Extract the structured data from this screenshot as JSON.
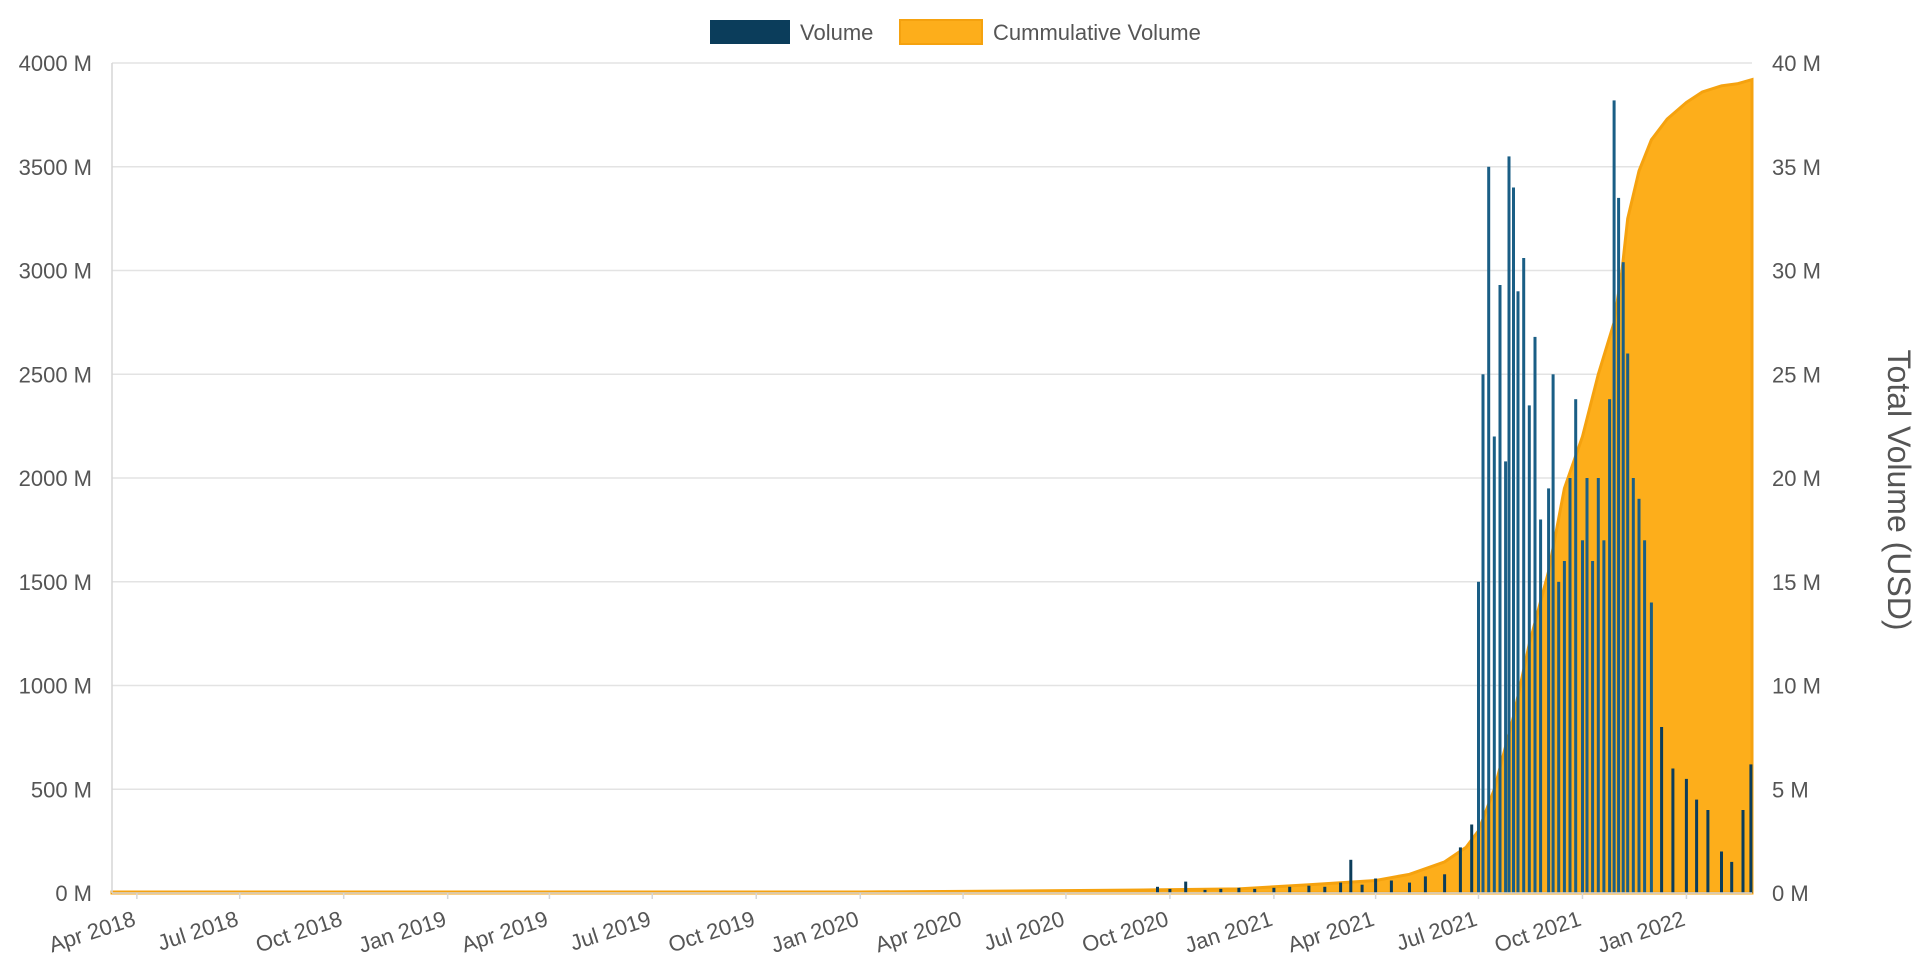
{
  "chart_data": {
    "type": "bar",
    "title": "",
    "xlabel": "",
    "ylabel_left": "",
    "ylabel_right": "Total Volume (USD)",
    "legend_position": "top-center",
    "grid": true,
    "x_range": [
      "2018-03-10",
      "2022-02-28"
    ],
    "ylim_left": [
      0,
      4000
    ],
    "ylim_right": [
      0,
      40
    ],
    "unit": "M",
    "colors": {
      "volume": "#0b3d5b",
      "volume_light": "#1a5e85",
      "cumulative": "#fdae1b"
    },
    "legend": [
      {
        "name": "Volume",
        "color": "#0b3d5b",
        "axis": "left",
        "type": "bar"
      },
      {
        "name": "Cummulative Volume",
        "color": "#fdae1b",
        "axis": "right",
        "type": "area"
      }
    ],
    "y_ticks_left": [
      "0 M",
      "500 M",
      "1000 M",
      "1500 M",
      "2000 M",
      "2500 M",
      "3000 M",
      "3500 M",
      "4000 M"
    ],
    "y_ticks_right": [
      "0 M",
      "5 M",
      "10 M",
      "15 M",
      "20 M",
      "25 M",
      "30 M",
      "35 M",
      "40 M"
    ],
    "x_ticks": [
      {
        "label": "Apr 2018",
        "date": "2018-04-01"
      },
      {
        "label": "Jul 2018",
        "date": "2018-07-01"
      },
      {
        "label": "Oct 2018",
        "date": "2018-10-01"
      },
      {
        "label": "Jan 2019",
        "date": "2019-01-01"
      },
      {
        "label": "Apr 2019",
        "date": "2019-04-01"
      },
      {
        "label": "Jul 2019",
        "date": "2019-07-01"
      },
      {
        "label": "Oct 2019",
        "date": "2019-10-01"
      },
      {
        "label": "Jan 2020",
        "date": "2020-01-01"
      },
      {
        "label": "Apr 2020",
        "date": "2020-04-01"
      },
      {
        "label": "Jul 2020",
        "date": "2020-07-01"
      },
      {
        "label": "Oct 2020",
        "date": "2020-10-01"
      },
      {
        "label": "Jan 2021",
        "date": "2021-01-01"
      },
      {
        "label": "Apr 2021",
        "date": "2021-04-01"
      },
      {
        "label": "Jul 2021",
        "date": "2021-07-01"
      },
      {
        "label": "Oct 2021",
        "date": "2021-10-01"
      },
      {
        "label": "Jan 2022",
        "date": "2022-01-01"
      }
    ],
    "series": [
      {
        "name": "Volume",
        "axis": "left",
        "type": "bar",
        "points": [
          [
            "2020-09-20",
            30
          ],
          [
            "2020-10-01",
            20
          ],
          [
            "2020-10-15",
            55
          ],
          [
            "2020-11-01",
            15
          ],
          [
            "2020-11-15",
            20
          ],
          [
            "2020-12-01",
            25
          ],
          [
            "2020-12-15",
            20
          ],
          [
            "2021-01-01",
            25
          ],
          [
            "2021-01-15",
            30
          ],
          [
            "2021-02-01",
            35
          ],
          [
            "2021-02-15",
            30
          ],
          [
            "2021-03-01",
            50
          ],
          [
            "2021-03-10",
            160
          ],
          [
            "2021-03-20",
            40
          ],
          [
            "2021-04-01",
            70
          ],
          [
            "2021-04-15",
            60
          ],
          [
            "2021-05-01",
            50
          ],
          [
            "2021-05-15",
            80
          ],
          [
            "2021-06-01",
            90
          ],
          [
            "2021-06-15",
            220
          ],
          [
            "2021-06-25",
            330
          ],
          [
            "2021-07-01",
            1500
          ],
          [
            "2021-07-05",
            2500
          ],
          [
            "2021-07-10",
            3500
          ],
          [
            "2021-07-15",
            2200
          ],
          [
            "2021-07-20",
            2930
          ],
          [
            "2021-07-25",
            2080
          ],
          [
            "2021-07-28",
            3550
          ],
          [
            "2021-08-01",
            3400
          ],
          [
            "2021-08-05",
            2900
          ],
          [
            "2021-08-10",
            3060
          ],
          [
            "2021-08-15",
            2350
          ],
          [
            "2021-08-20",
            2680
          ],
          [
            "2021-08-25",
            1800
          ],
          [
            "2021-09-01",
            1950
          ],
          [
            "2021-09-05",
            2500
          ],
          [
            "2021-09-10",
            1500
          ],
          [
            "2021-09-15",
            1600
          ],
          [
            "2021-09-20",
            2000
          ],
          [
            "2021-09-25",
            2380
          ],
          [
            "2021-10-01",
            1700
          ],
          [
            "2021-10-05",
            2000
          ],
          [
            "2021-10-10",
            1600
          ],
          [
            "2021-10-15",
            2000
          ],
          [
            "2021-10-20",
            1700
          ],
          [
            "2021-10-25",
            2380
          ],
          [
            "2021-10-29",
            3820
          ],
          [
            "2021-11-02",
            3350
          ],
          [
            "2021-11-06",
            3040
          ],
          [
            "2021-11-10",
            2600
          ],
          [
            "2021-11-15",
            2000
          ],
          [
            "2021-11-20",
            1900
          ],
          [
            "2021-11-25",
            1700
          ],
          [
            "2021-12-01",
            1400
          ],
          [
            "2021-12-10",
            800
          ],
          [
            "2021-12-20",
            600
          ],
          [
            "2022-01-01",
            550
          ],
          [
            "2022-01-10",
            450
          ],
          [
            "2022-01-20",
            400
          ],
          [
            "2022-02-01",
            200
          ],
          [
            "2022-02-10",
            150
          ],
          [
            "2022-02-20",
            400
          ],
          [
            "2022-02-27",
            620
          ]
        ]
      },
      {
        "name": "Cummulative Volume",
        "axis": "right",
        "type": "area",
        "points": [
          [
            "2018-03-10",
            0.05
          ],
          [
            "2019-01-01",
            0.05
          ],
          [
            "2020-01-01",
            0.05
          ],
          [
            "2020-06-01",
            0.1
          ],
          [
            "2020-09-15",
            0.15
          ],
          [
            "2020-12-01",
            0.2
          ],
          [
            "2021-02-01",
            0.4
          ],
          [
            "2021-04-01",
            0.6
          ],
          [
            "2021-05-01",
            0.9
          ],
          [
            "2021-06-01",
            1.5
          ],
          [
            "2021-06-20",
            2.2
          ],
          [
            "2021-07-01",
            3.0
          ],
          [
            "2021-07-15",
            5.0
          ],
          [
            "2021-08-01",
            8.5
          ],
          [
            "2021-08-15",
            12.0
          ],
          [
            "2021-09-01",
            15.5
          ],
          [
            "2021-09-15",
            19.5
          ],
          [
            "2021-10-01",
            22.0
          ],
          [
            "2021-10-15",
            25.0
          ],
          [
            "2021-10-29",
            27.5
          ],
          [
            "2021-11-05",
            30.0
          ],
          [
            "2021-11-10",
            32.5
          ],
          [
            "2021-11-20",
            34.8
          ],
          [
            "2021-12-01",
            36.3
          ],
          [
            "2021-12-15",
            37.3
          ],
          [
            "2022-01-01",
            38.1
          ],
          [
            "2022-01-15",
            38.6
          ],
          [
            "2022-02-01",
            38.9
          ],
          [
            "2022-02-15",
            39.0
          ],
          [
            "2022-02-28",
            39.2
          ]
        ]
      }
    ]
  }
}
